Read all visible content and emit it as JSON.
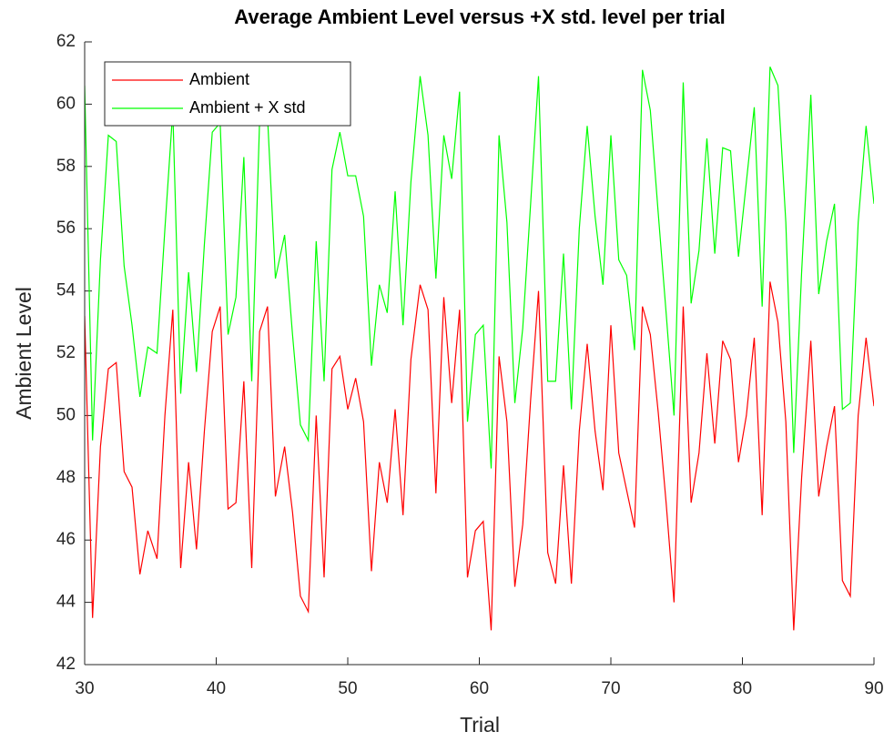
{
  "chart_data": {
    "type": "line",
    "title": "Average Ambient Level versus +X std. level per trial",
    "x_label": "Trial",
    "y_label": "Ambient Level",
    "x": [
      30,
      30.6,
      31.2,
      31.8,
      32.4,
      33,
      33.6,
      34.2,
      34.8,
      35.5,
      36.1,
      36.7,
      37.3,
      37.9,
      38.5,
      39.1,
      39.7,
      40.3,
      40.9,
      41.5,
      42.1,
      42.7,
      43.3,
      43.9,
      44.5,
      45.2,
      45.8,
      46.4,
      47,
      47.6,
      48.2,
      48.8,
      49.4,
      50,
      50.6,
      51.2,
      51.8,
      52.4,
      53,
      53.6,
      54.2,
      54.8,
      55.5,
      56.1,
      56.7,
      57.3,
      57.9,
      58.5,
      59.1,
      59.7,
      60.3,
      60.9,
      61.5,
      62.1,
      62.7,
      63.3,
      63.9,
      64.5,
      65.2,
      65.8,
      66.4,
      67,
      67.6,
      68.2,
      68.8,
      69.4,
      70,
      70.6,
      71.2,
      71.8,
      72.4,
      73,
      73.6,
      74.2,
      74.8,
      75.5,
      76.1,
      76.7,
      77.3,
      77.9,
      78.5,
      79.1,
      79.7,
      80.3,
      80.9,
      81.5,
      82.1,
      82.7,
      83.3,
      83.9,
      84.5,
      85.2,
      85.8,
      86.4,
      87,
      87.6,
      88.2,
      88.8,
      89.4,
      90
    ],
    "series": [
      {
        "name": "Ambient",
        "color": "#ff0000",
        "values": [
          53.2,
          43.5,
          49,
          51.5,
          51.7,
          48.2,
          47.7,
          44.9,
          46.3,
          45.4,
          50,
          53.4,
          45.1,
          48.5,
          45.7,
          49.5,
          52.7,
          53.5,
          47,
          47.2,
          51.1,
          45.1,
          52.7,
          53.5,
          47.4,
          49,
          46.9,
          44.2,
          43.7,
          50,
          44.8,
          51.5,
          51.9,
          50.2,
          51.2,
          49.8,
          45,
          48.5,
          47.2,
          50.2,
          46.8,
          51.8,
          54.2,
          53.4,
          47.5,
          53.8,
          50.4,
          53.4,
          44.8,
          46.3,
          46.6,
          43.1,
          51.9,
          49.8,
          44.5,
          46.5,
          50.5,
          54,
          45.6,
          44.6,
          48.4,
          44.6,
          49.5,
          52.3,
          49.5,
          47.6,
          52.9,
          48.8,
          47.6,
          46.4,
          53.5,
          52.6,
          50.1,
          47.2,
          44,
          53.5,
          47.2,
          48.8,
          52,
          49.1,
          52.4,
          51.8,
          48.5,
          50,
          52.5,
          46.8,
          54.3,
          53,
          49.8,
          43.1,
          48,
          52.4,
          47.4,
          49,
          50.3,
          44.7,
          44.2,
          50,
          52.5,
          50.3
        ]
      },
      {
        "name": "Ambient + X std",
        "color": "#00ff00",
        "values": [
          60.6,
          49.2,
          55,
          59,
          58.8,
          54.8,
          52.9,
          50.6,
          52.2,
          52,
          56,
          59.8,
          50.7,
          54.6,
          51.4,
          55.5,
          59.1,
          59.4,
          52.6,
          53.8,
          58.3,
          51.1,
          59.5,
          59.6,
          54.4,
          55.8,
          52.6,
          49.7,
          49.2,
          55.6,
          51.1,
          57.9,
          59.1,
          57.7,
          57.7,
          56.4,
          51.6,
          54.2,
          53.3,
          57.2,
          52.9,
          57.5,
          60.9,
          59,
          54.4,
          59,
          57.6,
          60.4,
          49.8,
          52.6,
          52.9,
          48.3,
          59,
          56.2,
          50.4,
          52.8,
          56.8,
          60.9,
          51.1,
          51.1,
          55.2,
          50.2,
          56,
          59.3,
          56.4,
          54.2,
          59,
          55,
          54.5,
          52.1,
          61.1,
          59.8,
          56.5,
          53.3,
          50,
          60.7,
          53.6,
          55.3,
          58.9,
          55.2,
          58.6,
          58.5,
          55.1,
          57.5,
          59.9,
          53.5,
          61.2,
          60.6,
          56.2,
          48.8,
          54.6,
          60.3,
          53.9,
          55.6,
          56.8,
          50.2,
          50.4,
          56.2,
          59.3,
          56.8
        ]
      }
    ],
    "xlim": [
      30,
      90
    ],
    "xticks": [
      30,
      40,
      50,
      60,
      70,
      80,
      90
    ],
    "ylim": [
      42,
      62
    ],
    "yticks": [
      42,
      44,
      46,
      48,
      50,
      52,
      54,
      56,
      58,
      60,
      62
    ],
    "legend": "upper left"
  }
}
